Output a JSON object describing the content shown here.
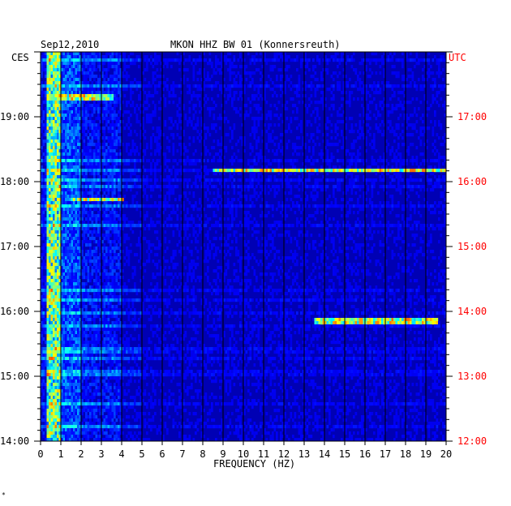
{
  "header": {
    "date": "Sep12,2010",
    "station": "MKON HHZ BW 01 (Konnersreuth)"
  },
  "chart_data": {
    "type": "heatmap",
    "title": "MKON HHZ BW 01 (Konnersreuth)",
    "xlabel": "FREQUENCY (HZ)",
    "left_axis_label": "CES",
    "right_axis_label": "UTC",
    "xlim": [
      0,
      20
    ],
    "x_ticks": [
      "0",
      "1",
      "2",
      "3",
      "4",
      "5",
      "6",
      "7",
      "8",
      "9",
      "10",
      "11",
      "12",
      "13",
      "14",
      "15",
      "16",
      "17",
      "18",
      "19",
      "20"
    ],
    "left_time_range": [
      "14:00",
      "20:00"
    ],
    "left_ticks": [
      "19:00",
      "18:00",
      "17:00",
      "16:00",
      "15:00",
      "14:00"
    ],
    "right_ticks": [
      "17:00",
      "16:00",
      "15:00",
      "14:00",
      "13:00",
      "12:00"
    ],
    "left_tick_color": "#000000",
    "right_tick_color": "#ff0000",
    "colormap": [
      "#00008f",
      "#0000ff",
      "#00ffff",
      "#ffff00",
      "#ff0000"
    ],
    "background_color": "#0000b4",
    "grid": true,
    "notable_events": [
      {
        "time": "15:51",
        "freq_range": [
          13.5,
          19.5
        ],
        "description": "narrow-band line"
      },
      {
        "time": "18:10",
        "freq_range": [
          8.5,
          20
        ],
        "description": "narrow-band line"
      },
      {
        "time": "17:43",
        "freq_range": [
          1.5,
          4
        ],
        "description": "band"
      },
      {
        "time": "19:18",
        "freq_range": [
          0.3,
          3.5
        ],
        "description": "band"
      }
    ]
  },
  "footer": {
    "mark": "*"
  }
}
